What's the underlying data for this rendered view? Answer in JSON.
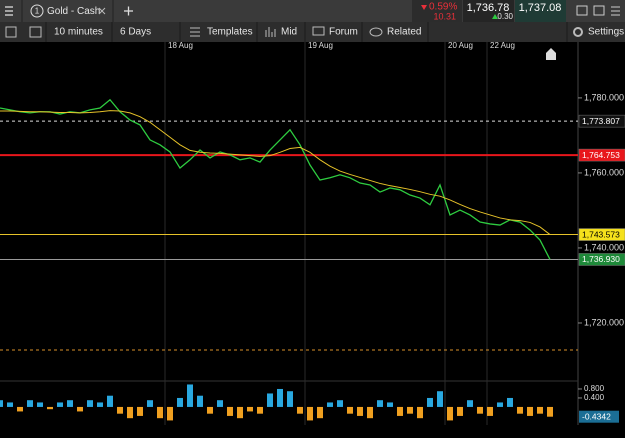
{
  "top_bar": {
    "tab_number": "1",
    "instrument": "Gold - Cash",
    "change_percent": "0.59%",
    "change_points": "10.31",
    "sell_price": "1,736.78",
    "spread": "0.30",
    "buy_price": "1,737.08"
  },
  "toolbar": {
    "interval": "10 minutes",
    "range": "6 Days",
    "templates": "Templates",
    "price_type": "Mid",
    "forum": "Forum",
    "related": "Related",
    "settings": "Settings"
  },
  "chart_data": {
    "type": "line",
    "date_ticks": [
      {
        "value": 16.5,
        "label": "18 Aug"
      },
      {
        "value": 30.5,
        "label": "19 Aug"
      },
      {
        "value": 44.5,
        "label": "20 Aug"
      },
      {
        "value": 48.7,
        "label": "22 Aug"
      }
    ],
    "series": [
      {
        "color": "#2ecc40",
        "values": [
          1777.3,
          1776.8,
          1776.3,
          1776,
          1776.3,
          1776.3,
          1775.7,
          1776.3,
          1776,
          1776.8,
          1777.3,
          1779.5,
          1776.3,
          1774.1,
          1772.8,
          1768.8,
          1767.5,
          1765.6,
          1761.3,
          1763.5,
          1766.1,
          1764,
          1765.6,
          1764.8,
          1763.5,
          1764,
          1762.9,
          1766.1,
          1768.8,
          1771.5,
          1767.5,
          1762.1,
          1758.1,
          1758.7,
          1759.5,
          1758.7,
          1757.3,
          1756.8,
          1754.9,
          1756,
          1755.5,
          1754.1,
          1753.3,
          1751.5,
          1756.8,
          1748.8,
          1750.1,
          1748.8,
          1746.9,
          1746.4,
          1746.1,
          1747.5,
          1746.9,
          1744.8,
          1742.1,
          1736.93
        ]
      },
      {
        "color": "#e6c229",
        "values": [
          1776.5,
          1776.5,
          1776.4,
          1776.3,
          1776.3,
          1776.2,
          1776.1,
          1776.1,
          1776,
          1776.1,
          1776.3,
          1776.6,
          1776.5,
          1776,
          1775,
          1773.5,
          1771.5,
          1769.5,
          1767.5,
          1766,
          1765.5,
          1765.3,
          1765.2,
          1765,
          1764.8,
          1764.6,
          1764.4,
          1764.6,
          1765.5,
          1766.5,
          1766.8,
          1765.5,
          1763.5,
          1761.8,
          1760.5,
          1759.6,
          1758.8,
          1758,
          1757.2,
          1756.6,
          1756.1,
          1755.6,
          1755,
          1754.3,
          1753.8,
          1752.8,
          1751.6,
          1750.5,
          1749.6,
          1748.8,
          1748,
          1747.5,
          1747.3,
          1746.8,
          1745.6,
          1743.573
        ]
      }
    ],
    "ylim": [
      1704.8,
      1794.1
    ],
    "yticks": [
      {
        "value": 1780,
        "label": "1,780.000"
      },
      {
        "value": 1760,
        "label": "1,760.000"
      },
      {
        "value": 1740,
        "label": "1,740.000"
      },
      {
        "value": 1720,
        "label": "1,720.000"
      }
    ],
    "levels": [
      {
        "value": 1773.807,
        "label": "1,773.807",
        "color": "#dddddd",
        "dashed": true,
        "label_bg": "#111111",
        "label_color": "#ffffff"
      },
      {
        "value": 1764.753,
        "label": "1,764.753",
        "color": "#e8161b",
        "dashed": false,
        "label_bg": "#e8161b",
        "label_color": "#ffffff"
      },
      {
        "value": 1743.573,
        "label": "1,743.573",
        "color": "#e6c229",
        "dashed": false,
        "label_bg": "#f5e11c",
        "label_color": "#000000"
      },
      {
        "value": 1736.93,
        "label": "1,736.930",
        "color": "#9a9a9a",
        "dashed": false,
        "label_bg": "#1f8a3a",
        "label_color": "#ffffff"
      },
      {
        "value": 1712.8,
        "color": "#d8912a",
        "dashed": true
      }
    ],
    "oscillator": {
      "ylim": [
        -0.67,
        1.11
      ],
      "yticks": [
        {
          "value": 0.8,
          "label": "0.800"
        },
        {
          "value": 0.4,
          "label": "0.400"
        }
      ],
      "positive_color": "#29a8e0",
      "negative_color": "#f0a020",
      "values": [
        0.3,
        0.2,
        -0.2,
        0.3,
        0.2,
        -0.1,
        0.2,
        0.3,
        -0.2,
        0.3,
        0.2,
        0.5,
        -0.3,
        -0.5,
        -0.4,
        0.3,
        -0.5,
        -0.6,
        0.4,
        1.0,
        0.5,
        -0.3,
        0.3,
        -0.4,
        -0.5,
        -0.2,
        -0.3,
        0.6,
        0.8,
        0.7,
        -0.3,
        -0.6,
        -0.5,
        0.2,
        0.3,
        -0.3,
        -0.4,
        -0.5,
        0.3,
        0.2,
        -0.4,
        -0.3,
        -0.5,
        0.4,
        0.7,
        -0.6,
        -0.4,
        0.3,
        -0.3,
        -0.4,
        0.2,
        0.4,
        -0.3,
        -0.4,
        -0.3,
        -0.4342
      ]
    }
  }
}
